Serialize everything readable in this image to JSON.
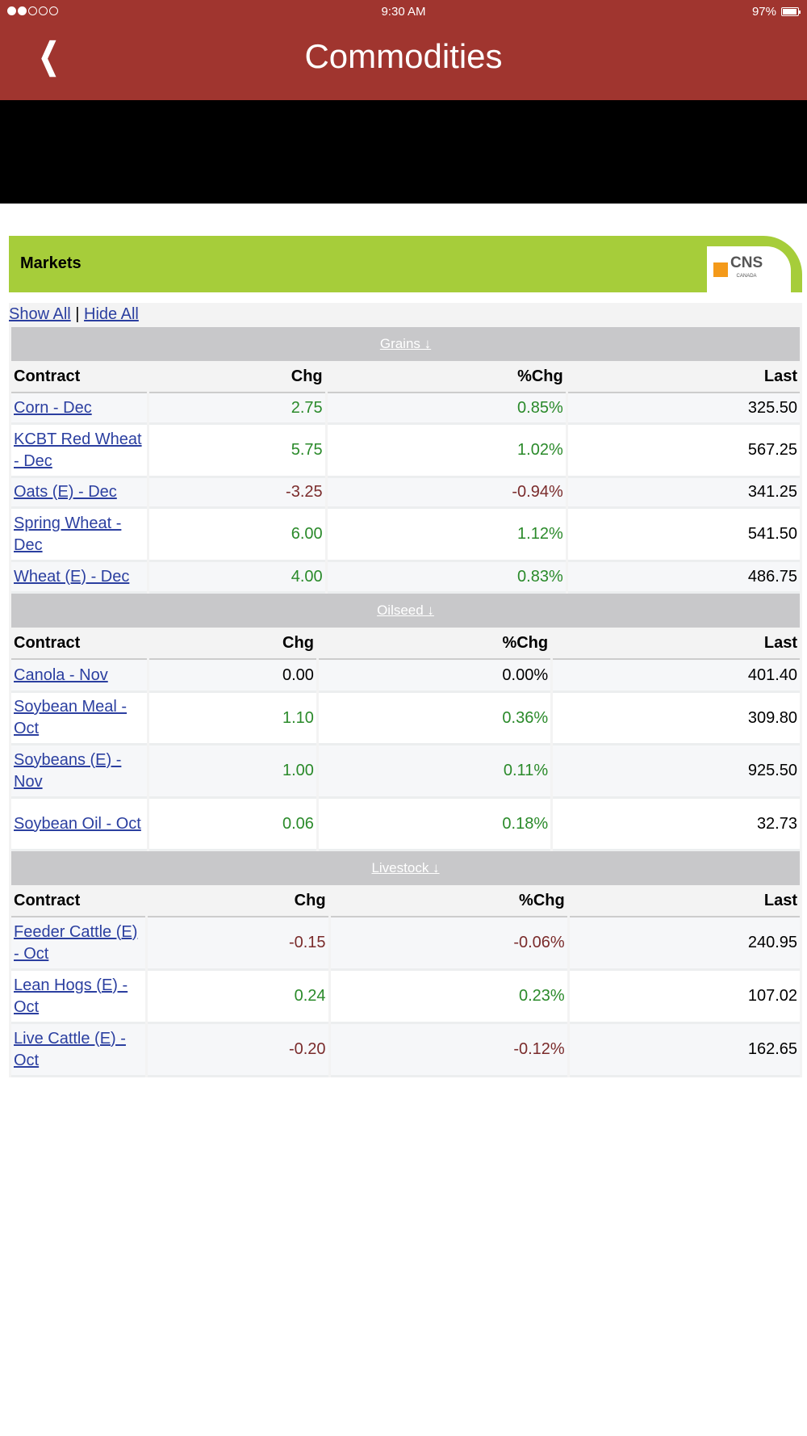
{
  "status": {
    "time": "9:30 AM",
    "battery": "97%",
    "signal_bars": 2,
    "battery_level": 0.97
  },
  "header": {
    "title": "Commodities"
  },
  "markets": {
    "title": "Markets",
    "logo_text": "CNS",
    "logo_sub": "CANADA"
  },
  "links": {
    "show_all": "Show All",
    "separator": "|",
    "hide_all": "Hide All"
  },
  "columns": {
    "contract": "Contract",
    "chg": "Chg",
    "pct": "%Chg",
    "last": "Last"
  },
  "colors": {
    "up": "#2a8a2a",
    "down": "#7a2b2b",
    "header": "#a0352f",
    "green_bar": "#a6cd3a"
  },
  "sections": [
    {
      "name": "Grains ↓",
      "rows": [
        {
          "contract": "Corn - Dec",
          "chg": "2.75",
          "pct": "0.85%",
          "last": "325.50",
          "dir": "up"
        },
        {
          "contract": "KCBT Red Wheat - Dec",
          "chg": "5.75",
          "pct": "1.02%",
          "last": "567.25",
          "dir": "up"
        },
        {
          "contract": "Oats (E) - Dec",
          "chg": "-3.25",
          "pct": "-0.94%",
          "last": "341.25",
          "dir": "dn"
        },
        {
          "contract": "Spring Wheat - Dec",
          "chg": "6.00",
          "pct": "1.12%",
          "last": "541.50",
          "dir": "up"
        },
        {
          "contract": "Wheat (E) - Dec",
          "chg": "4.00",
          "pct": "0.83%",
          "last": "486.75",
          "dir": "up"
        }
      ]
    },
    {
      "name": "Oilseed ↓",
      "rows": [
        {
          "contract": "Canola - Nov",
          "chg": "0.00",
          "pct": "0.00%",
          "last": "401.40",
          "dir": "nc"
        },
        {
          "contract": "Soybean Meal - Oct",
          "chg": "1.10",
          "pct": "0.36%",
          "last": "309.80",
          "dir": "up"
        },
        {
          "contract": "Soybeans (E) - Nov",
          "chg": "1.00",
          "pct": "0.11%",
          "last": "925.50",
          "dir": "up"
        },
        {
          "contract": "Soybean Oil - Oct",
          "chg": "0.06",
          "pct": "0.18%",
          "last": "32.73",
          "dir": "up"
        }
      ]
    },
    {
      "name": "Livestock ↓",
      "rows": [
        {
          "contract": "Feeder Cattle (E) - Oct",
          "chg": "-0.15",
          "pct": "-0.06%",
          "last": "240.95",
          "dir": "dn"
        },
        {
          "contract": "Lean Hogs (E) - Oct",
          "chg": "0.24",
          "pct": "0.23%",
          "last": "107.02",
          "dir": "up"
        },
        {
          "contract": "Live Cattle (E) - Oct",
          "chg": "-0.20",
          "pct": "-0.12%",
          "last": "162.65",
          "dir": "dn"
        }
      ]
    }
  ]
}
